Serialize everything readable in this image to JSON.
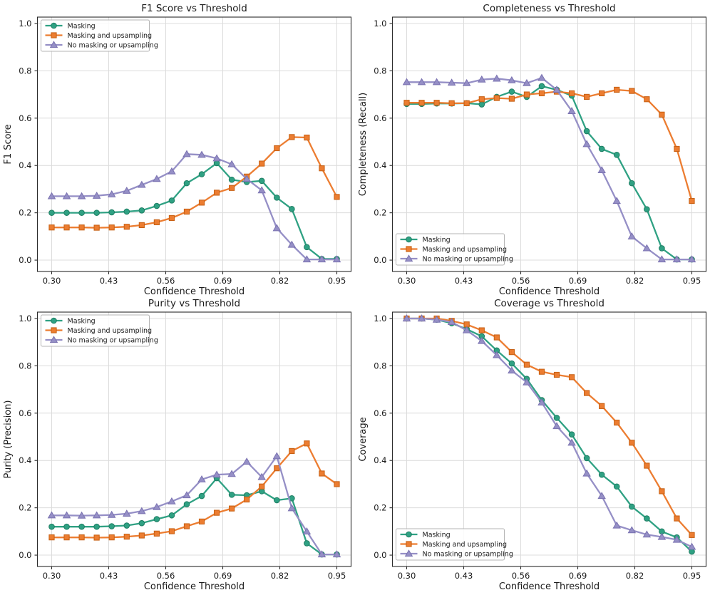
{
  "figure": {
    "background": "#ffffff",
    "grid_color": "#dcdcdc",
    "spine_color": "#2b2b2b",
    "text_color": "#1a1a1a"
  },
  "axes": {
    "x_label": "Confidence Threshold",
    "x_tick_labels": [
      "0.30",
      "0.43",
      "0.56",
      "0.69",
      "0.82",
      "0.95"
    ],
    "x_tick_values": [
      0.3,
      0.43,
      0.56,
      0.69,
      0.82,
      0.95
    ],
    "y_tick_labels": [
      "0.0",
      "0.2",
      "0.4",
      "0.6",
      "0.8",
      "1.0"
    ],
    "y_tick_values": [
      0.0,
      0.2,
      0.4,
      0.6,
      0.8,
      1.0
    ],
    "xlim": [
      0.2675,
      0.9825
    ],
    "ylim": [
      -0.048,
      1.027
    ]
  },
  "legend_labels": [
    "Masking",
    "Masking and upsampling",
    "No masking or upsampling"
  ],
  "series_styles": [
    {
      "name": "Masking",
      "color": "#2fa183",
      "edge": "#1e7d62",
      "marker": "circle"
    },
    {
      "name": "Masking and upsampling",
      "color": "#ec7d31",
      "edge": "#c65f12",
      "marker": "square"
    },
    {
      "name": "No masking or upsampling",
      "color": "#958fc6",
      "edge": "#7a72b0",
      "marker": "triangle"
    }
  ],
  "chart_data": [
    {
      "type": "line",
      "title": "F1 Score vs Threshold",
      "xlabel": "Confidence Threshold",
      "ylabel": "F1 Score",
      "legend_position": "upper-left",
      "grid": true,
      "x": [
        0.3,
        0.3342,
        0.3684,
        0.4026,
        0.4368,
        0.4711,
        0.5053,
        0.5395,
        0.5737,
        0.6079,
        0.6421,
        0.6763,
        0.7105,
        0.7447,
        0.7789,
        0.8132,
        0.8474,
        0.8816,
        0.9158,
        0.95
      ],
      "series": [
        {
          "name": "Masking",
          "values": [
            0.2,
            0.2,
            0.2,
            0.2,
            0.202,
            0.205,
            0.21,
            0.229,
            0.252,
            0.325,
            0.363,
            0.41,
            0.34,
            0.33,
            0.335,
            0.264,
            0.216,
            0.055,
            0.005,
            0.005
          ]
        },
        {
          "name": "Masking and upsampling",
          "values": [
            0.138,
            0.138,
            0.138,
            0.137,
            0.138,
            0.141,
            0.148,
            0.16,
            0.178,
            0.205,
            0.243,
            0.285,
            0.305,
            0.353,
            0.408,
            0.473,
            0.52,
            0.518,
            0.388,
            0.267
          ]
        },
        {
          "name": "No masking or upsampling",
          "values": [
            0.27,
            0.27,
            0.27,
            0.272,
            0.278,
            0.293,
            0.318,
            0.343,
            0.375,
            0.448,
            0.445,
            0.43,
            0.405,
            0.343,
            0.295,
            0.135,
            0.065,
            0.003,
            0.003,
            0.003
          ]
        }
      ]
    },
    {
      "type": "line",
      "title": "Completeness vs Threshold",
      "xlabel": "Confidence Threshold",
      "ylabel": "Completeness (Recall)",
      "legend_position": "lower-left",
      "grid": true,
      "x": [
        0.3,
        0.3342,
        0.3684,
        0.4026,
        0.4368,
        0.4711,
        0.5053,
        0.5395,
        0.5737,
        0.6079,
        0.6421,
        0.6763,
        0.7105,
        0.7447,
        0.7789,
        0.8132,
        0.8474,
        0.8816,
        0.9158,
        0.95
      ],
      "series": [
        {
          "name": "Masking",
          "values": [
            0.66,
            0.66,
            0.662,
            0.662,
            0.663,
            0.658,
            0.69,
            0.712,
            0.69,
            0.735,
            0.72,
            0.695,
            0.545,
            0.47,
            0.445,
            0.325,
            0.215,
            0.05,
            0.003,
            0.003
          ]
        },
        {
          "name": "Masking and upsampling",
          "values": [
            0.665,
            0.665,
            0.665,
            0.663,
            0.663,
            0.68,
            0.685,
            0.682,
            0.7,
            0.705,
            0.712,
            0.705,
            0.69,
            0.705,
            0.72,
            0.715,
            0.68,
            0.615,
            0.47,
            0.25
          ]
        },
        {
          "name": "No masking or upsampling",
          "values": [
            0.752,
            0.752,
            0.752,
            0.75,
            0.748,
            0.763,
            0.767,
            0.76,
            0.748,
            0.77,
            0.72,
            0.63,
            0.49,
            0.38,
            0.25,
            0.1,
            0.05,
            0.003,
            0.003,
            0.003
          ]
        }
      ]
    },
    {
      "type": "line",
      "title": "Purity vs Threshold",
      "xlabel": "Confidence Threshold",
      "ylabel": "Purity (Precision)",
      "legend_position": "upper-left",
      "grid": true,
      "x": [
        0.3,
        0.3342,
        0.3684,
        0.4026,
        0.4368,
        0.4711,
        0.5053,
        0.5395,
        0.5737,
        0.6079,
        0.6421,
        0.6763,
        0.7105,
        0.7447,
        0.7789,
        0.8132,
        0.8474,
        0.8816,
        0.9158,
        0.95
      ],
      "series": [
        {
          "name": "Masking",
          "values": [
            0.12,
            0.12,
            0.12,
            0.12,
            0.122,
            0.125,
            0.135,
            0.152,
            0.168,
            0.215,
            0.25,
            0.325,
            0.255,
            0.253,
            0.27,
            0.232,
            0.24,
            0.05,
            0.003,
            0.003
          ]
        },
        {
          "name": "Masking and upsampling",
          "values": [
            0.075,
            0.075,
            0.075,
            0.074,
            0.075,
            0.078,
            0.083,
            0.091,
            0.101,
            0.122,
            0.142,
            0.179,
            0.197,
            0.235,
            0.29,
            0.367,
            0.44,
            0.472,
            0.345,
            0.3
          ]
        },
        {
          "name": "No masking or upsampling",
          "values": [
            0.168,
            0.168,
            0.167,
            0.168,
            0.17,
            0.175,
            0.186,
            0.203,
            0.227,
            0.253,
            0.32,
            0.34,
            0.343,
            0.395,
            0.33,
            0.418,
            0.198,
            0.1,
            0.003,
            0.003
          ]
        }
      ]
    },
    {
      "type": "line",
      "title": "Coverage vs Threshold",
      "xlabel": "Confidence Threshold",
      "ylabel": "Coverage",
      "legend_position": "lower-left",
      "grid": true,
      "x": [
        0.3,
        0.3342,
        0.3684,
        0.4026,
        0.4368,
        0.4711,
        0.5053,
        0.5395,
        0.5737,
        0.6079,
        0.6421,
        0.6763,
        0.7105,
        0.7447,
        0.7789,
        0.8132,
        0.8474,
        0.8816,
        0.9158,
        0.95
      ],
      "series": [
        {
          "name": "Masking",
          "values": [
            1.0,
            1.0,
            0.995,
            0.98,
            0.955,
            0.925,
            0.865,
            0.81,
            0.745,
            0.655,
            0.58,
            0.51,
            0.41,
            0.34,
            0.29,
            0.205,
            0.155,
            0.1,
            0.075,
            0.015
          ]
        },
        {
          "name": "Masking and upsampling",
          "values": [
            1.0,
            1.0,
            1.0,
            0.99,
            0.975,
            0.95,
            0.92,
            0.858,
            0.805,
            0.775,
            0.762,
            0.752,
            0.685,
            0.63,
            0.56,
            0.475,
            0.378,
            0.27,
            0.155,
            0.085
          ]
        },
        {
          "name": "No masking or upsampling",
          "values": [
            1.0,
            1.0,
            0.995,
            0.985,
            0.95,
            0.905,
            0.845,
            0.78,
            0.73,
            0.645,
            0.545,
            0.475,
            0.345,
            0.25,
            0.125,
            0.105,
            0.087,
            0.077,
            0.065,
            0.035
          ]
        }
      ]
    }
  ]
}
